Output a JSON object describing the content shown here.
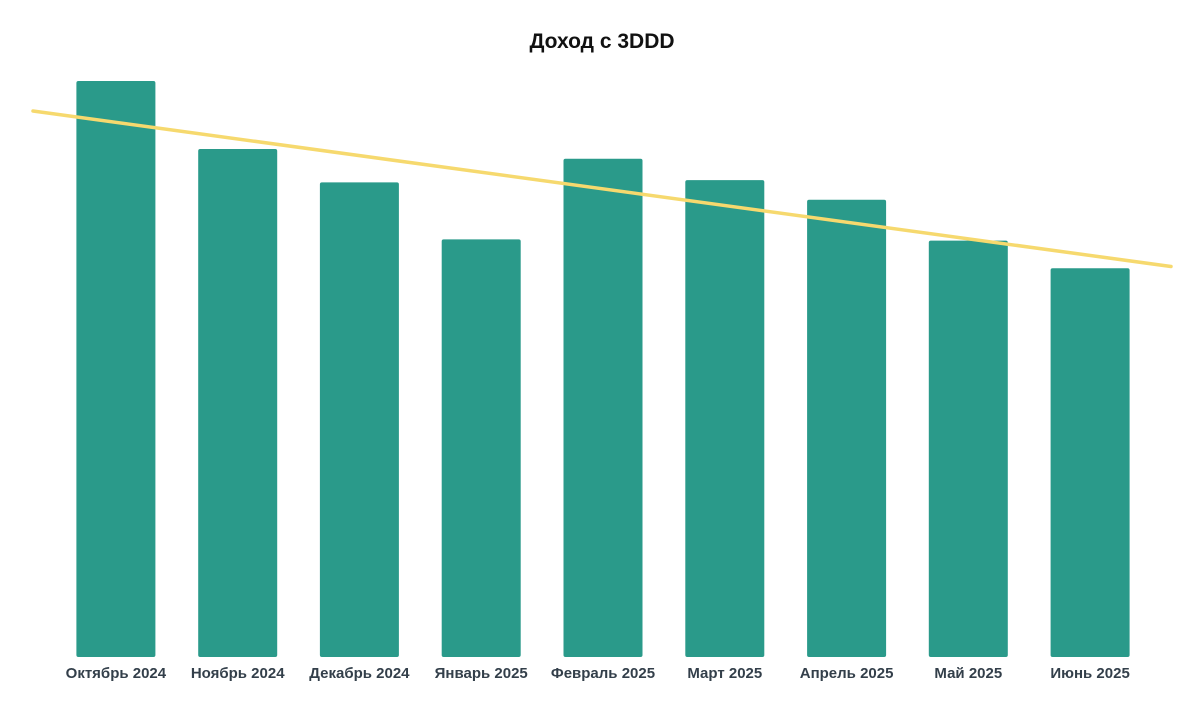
{
  "chart_data": {
    "type": "bar",
    "title": "Доход с 3DDD",
    "xlabel": "",
    "ylabel": "",
    "categories": [
      "Октябрь 2024",
      "Ноябрь 2024",
      "Декабрь 2024",
      "Январь 2025",
      "Февраль 2025",
      "Март 2025",
      "Апрель 2025",
      "Май 2025",
      "Июнь 2025"
    ],
    "series": [
      {
        "values": [
          100,
          88.2,
          82.4,
          72.5,
          86.5,
          82.8,
          79.4,
          72.3,
          67.5
        ],
        "color": "#2a9a8a"
      }
    ],
    "trendline": {
      "type": "linear",
      "color": "#f6d96e",
      "start_value": 94.8,
      "end_value": 67.8
    },
    "ylim": [
      0,
      100
    ],
    "y_axis_visible": false,
    "grid": false,
    "legend": "none",
    "colors": {
      "bar": "#2a9a8a",
      "trend": "#f6d96e",
      "tick_label": "#333f4a",
      "title": "#111111"
    }
  }
}
